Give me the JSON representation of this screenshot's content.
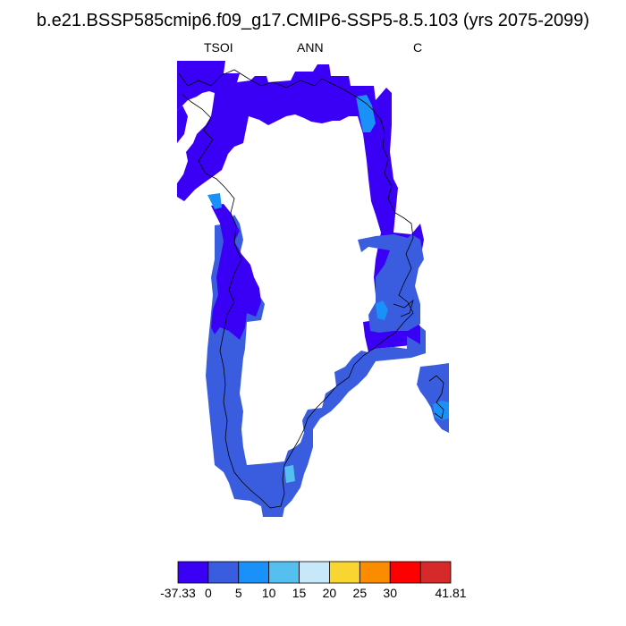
{
  "title": "b.e21.BSSP585cmip6.f09_g17.CMIP6-SSP5-8.5.103 (yrs 2075-2099)",
  "subtitle": {
    "left": "TSOI",
    "center": "ANN",
    "right": "C"
  },
  "colorbar": {
    "colors": [
      "#3a00f5",
      "#3a5de0",
      "#1991f8",
      "#55c0f0",
      "#c6e8f8",
      "#f9d532",
      "#fb8c00",
      "#ff0000",
      "#d62a2a"
    ],
    "labels": [
      "-37.33",
      "0",
      "5",
      "10",
      "15",
      "20",
      "25",
      "30",
      "",
      "41.81"
    ]
  },
  "map": {
    "colors": {
      "dark": "#3a00f5",
      "mid": "#3a5de0",
      "light": "#1991f8",
      "pale": "#55c0f0"
    }
  }
}
